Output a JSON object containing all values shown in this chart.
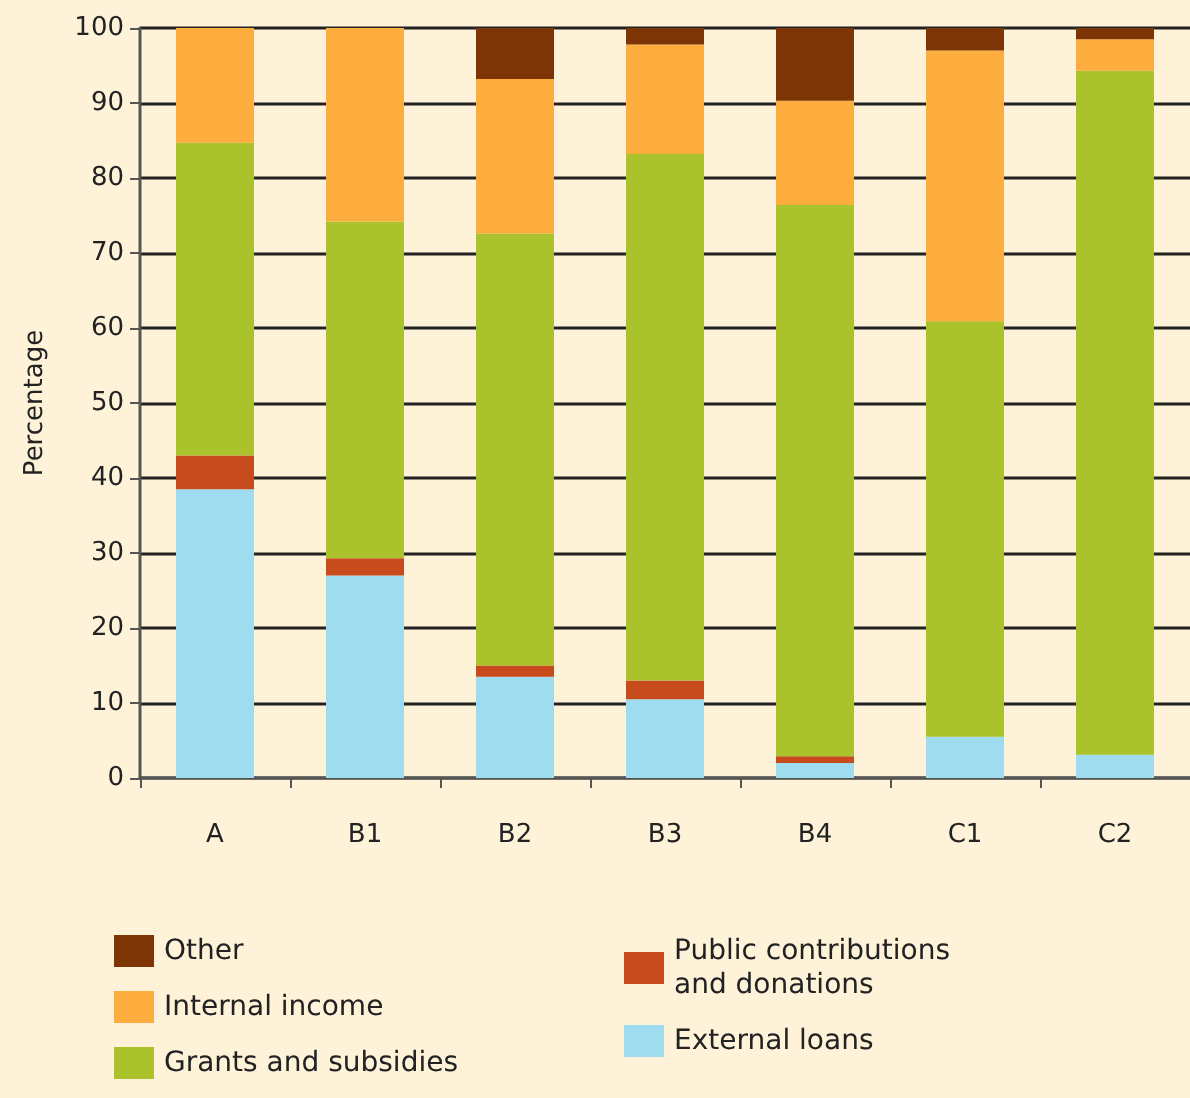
{
  "chart_data": {
    "type": "bar",
    "stacked": true,
    "ylabel": "Percentage",
    "categories": [
      "A",
      "B1",
      "B2",
      "B3",
      "B4",
      "C1",
      "C2"
    ],
    "ylim": [
      0,
      100
    ],
    "yticks": [
      0,
      10,
      20,
      30,
      40,
      50,
      60,
      70,
      80,
      90,
      100
    ],
    "grid": "y",
    "legend": "bottom",
    "series": [
      {
        "name": "External loans",
        "color": "#a0dcef",
        "values": [
          38.5,
          27,
          13.5,
          10.5,
          2.0,
          5.5,
          3.1
        ]
      },
      {
        "name": "Public contributions and donations",
        "color": "#c84b1e",
        "values": [
          4.5,
          2.3,
          1.5,
          2.5,
          0.9,
          0,
          0
        ]
      },
      {
        "name": "Grants and subsidies",
        "color": "#aac22c",
        "values": [
          41.7,
          44.9,
          57.6,
          70.2,
          73.5,
          55.4,
          91.2
        ]
      },
      {
        "name": "Internal income",
        "color": "#fcad3e",
        "values": [
          15.3,
          25.8,
          20.6,
          14.6,
          13.9,
          36.1,
          4.2
        ]
      },
      {
        "name": "Other",
        "color": "#7e3506",
        "values": [
          0,
          0,
          6.8,
          2.2,
          9.7,
          3.0,
          1.5
        ]
      }
    ]
  }
}
